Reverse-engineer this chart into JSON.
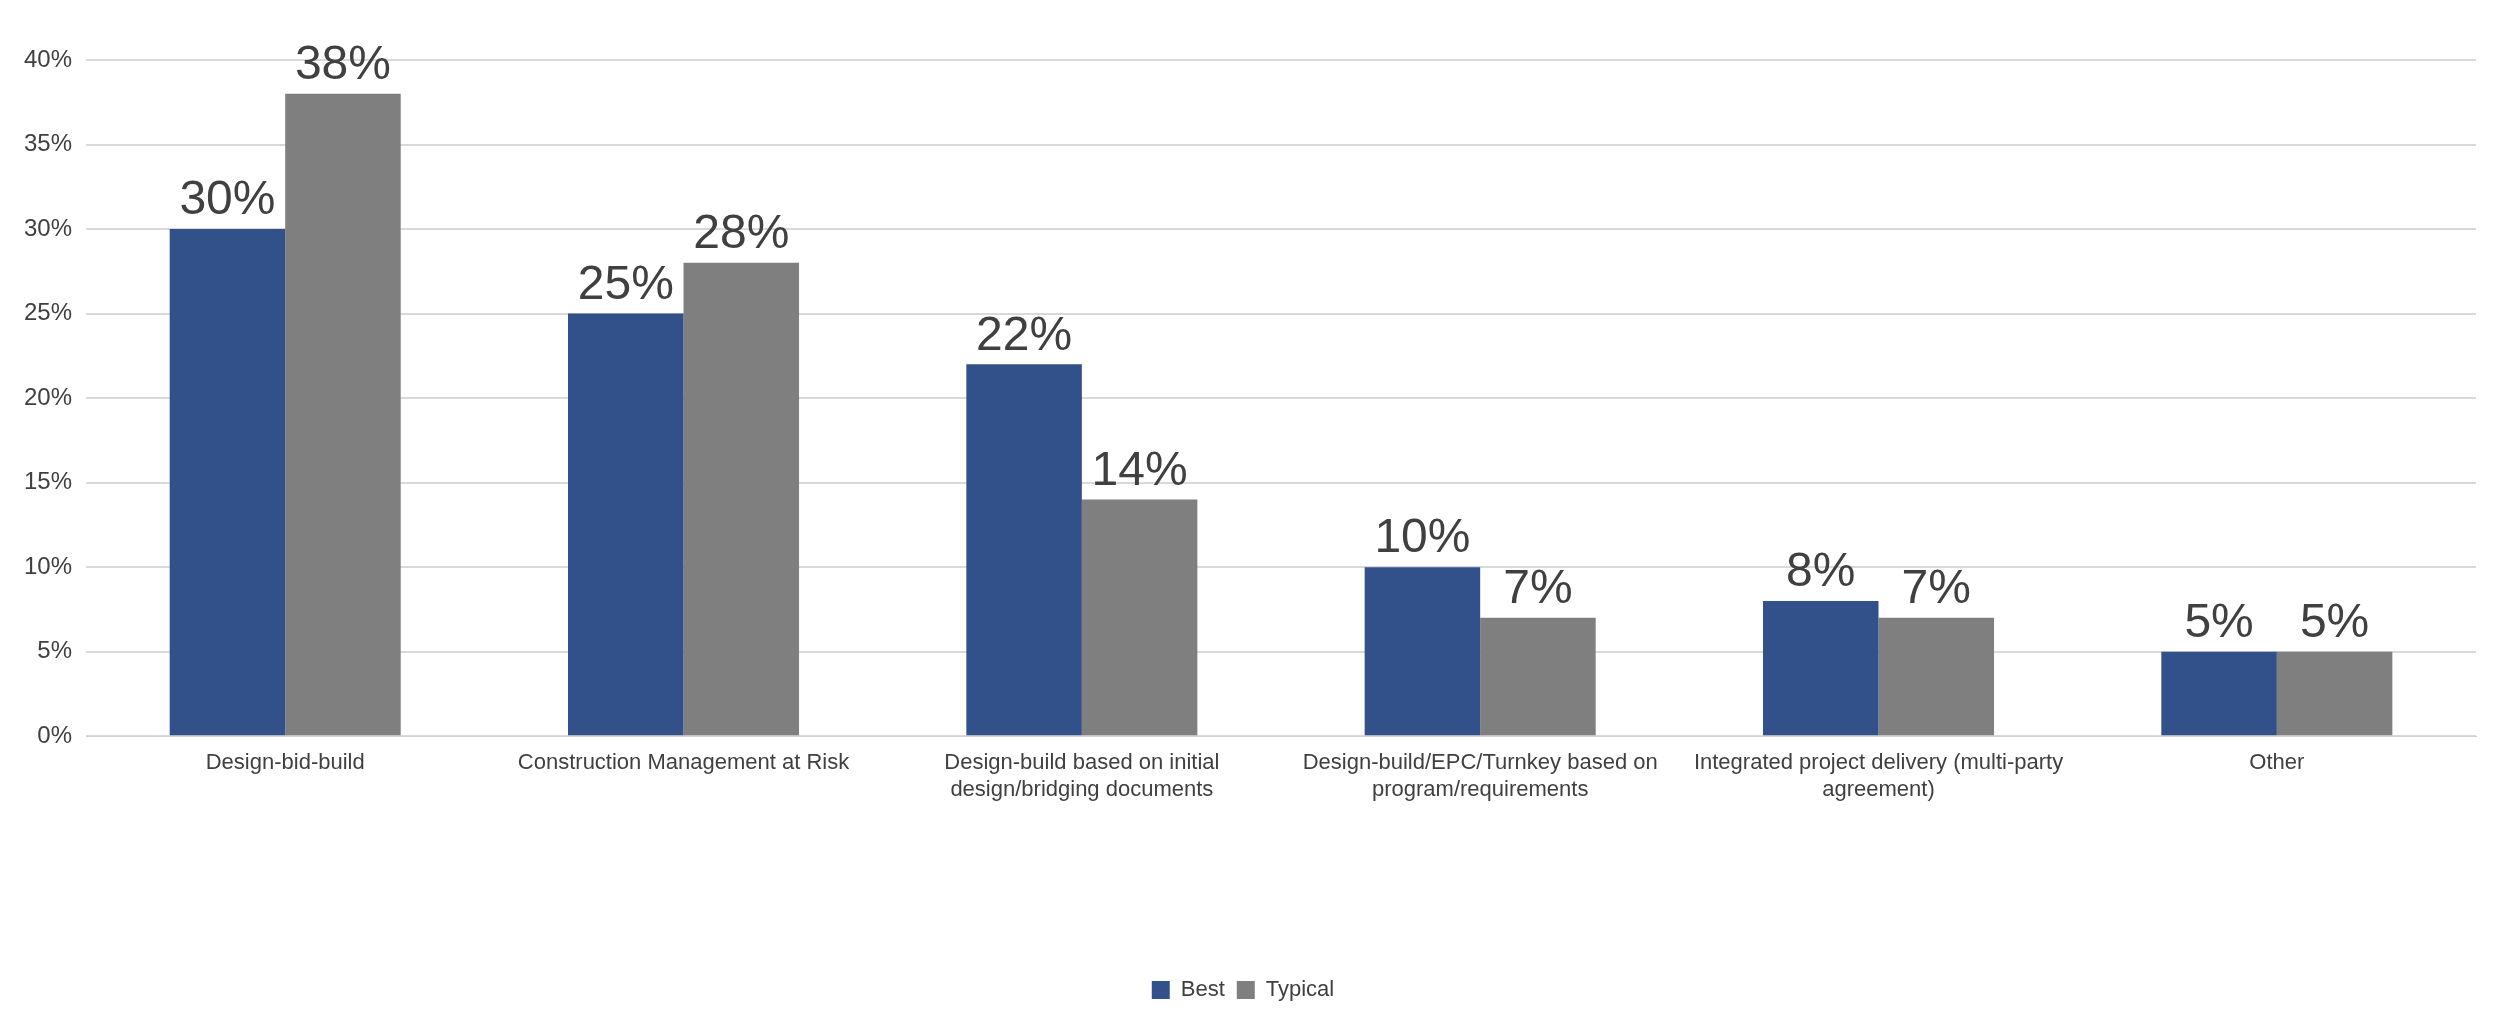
{
  "chart_data": {
    "type": "bar",
    "categories": [
      "Design-bid-build",
      "Construction Management at Risk",
      "Design-build based on initial design/bridging documents",
      "Design-build/EPC/Turnkey based on program/requirements",
      "Integrated project delivery (multi-party agreement)",
      "Other"
    ],
    "series": [
      {
        "name": "Best",
        "color": "#325089",
        "values": [
          30,
          25,
          22,
          10,
          8,
          5
        ],
        "value_labels": [
          "30%",
          "25%",
          "22%",
          "10%",
          "8%",
          "5%"
        ]
      },
      {
        "name": "Typical",
        "color": "#7f7f7f",
        "values": [
          38,
          28,
          14,
          7,
          7,
          5
        ],
        "value_labels": [
          "38%",
          "28%",
          "14%",
          "7%",
          "7%",
          "5%"
        ]
      }
    ],
    "ylim": [
      0,
      40
    ],
    "yticks": [
      {
        "value": 0,
        "label": "0%"
      },
      {
        "value": 5,
        "label": "5%"
      },
      {
        "value": 10,
        "label": "10%"
      },
      {
        "value": 15,
        "label": "15%"
      },
      {
        "value": 20,
        "label": "20%"
      },
      {
        "value": 25,
        "label": "25%"
      },
      {
        "value": 30,
        "label": "30%"
      },
      {
        "value": 35,
        "label": "35%"
      },
      {
        "value": 40,
        "label": "40%"
      }
    ],
    "grid": "y",
    "legend": "bottom"
  }
}
